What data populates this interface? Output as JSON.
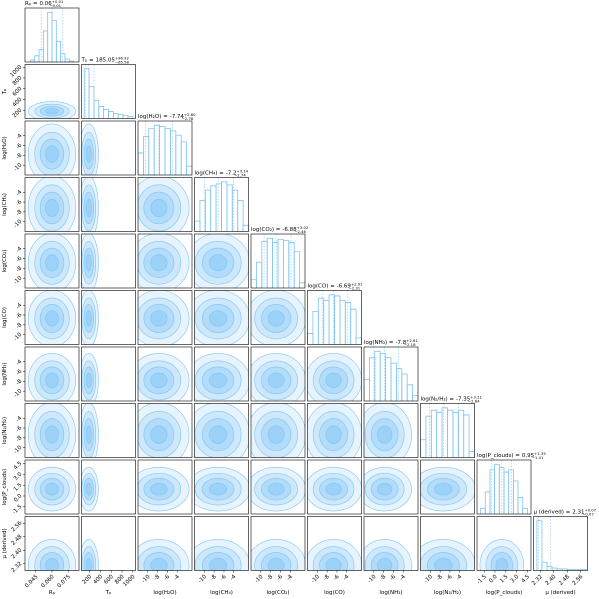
{
  "chart_data": {
    "type": "corner",
    "params": [
      {
        "name": "Rₚ",
        "title_prefix": "Rₚ =",
        "median": 0.06,
        "plus": {
          "value": 0.01,
          "label": "+0.01"
        },
        "minus": {
          "value": 0.01,
          "label": "−0.01"
        },
        "lim": [
          0.035,
          0.085
        ],
        "ticks": [
          0.045,
          {
            "value": 0.06,
            "label": "0.060"
          },
          0.075
        ],
        "bins": [
          0.04,
          0.044,
          0.048,
          0.052,
          0.056,
          0.06,
          0.064,
          0.068,
          0.072,
          0.076,
          0.08
        ],
        "counts": [
          2,
          6,
          12,
          30,
          48,
          40,
          20,
          8,
          3,
          1
        ]
      },
      {
        "name": "Tₚ",
        "title_prefix": "Tₚ =",
        "median": 185.05,
        "plus": {
          "value": 96.32,
          "label": "+96.32"
        },
        "minus": {
          "value": 65.58,
          "label": "−65.58"
        },
        "lim": [
          50,
          1050
        ],
        "ticks": [
          200,
          400,
          600,
          800,
          1000
        ],
        "bins": [
          100,
          190,
          280,
          370,
          460,
          550,
          640,
          730,
          820,
          910,
          1000
        ],
        "counts": [
          50,
          32,
          18,
          12,
          9,
          7,
          5,
          4,
          3,
          2
        ]
      },
      {
        "name": "log(H₂O)",
        "title_prefix": "log(H₂O) =",
        "median": -7.74,
        "plus": {
          "value": 2.8,
          "label": "+2.80"
        },
        "minus": {
          "value": 2.78,
          "label": "−2.78"
        },
        "lim": [
          -12,
          -1
        ],
        "ticks": [
          -10,
          -8,
          -6,
          -4
        ],
        "bins": [
          -12,
          -10.9,
          -9.8,
          -8.7,
          -7.6,
          -6.5,
          -5.4,
          -4.3,
          -3.2,
          -2.1,
          -1
        ],
        "counts": [
          20,
          35,
          42,
          45,
          44,
          42,
          40,
          36,
          30,
          8
        ]
      },
      {
        "name": "log(CH₄)",
        "title_prefix": "log(CH₄) =",
        "median": -7.2,
        "plus": {
          "value": 3.14,
          "label": "+3.14"
        },
        "minus": {
          "value": 2.74,
          "label": "−2.74"
        },
        "lim": [
          -12,
          -1
        ],
        "ticks": [
          -10,
          -8,
          -6,
          -4
        ],
        "bins": [
          -12,
          -10.9,
          -9.8,
          -8.7,
          -7.6,
          -6.5,
          -5.4,
          -4.3,
          -3.2,
          -2.1,
          -1
        ],
        "counts": [
          10,
          30,
          40,
          44,
          46,
          48,
          45,
          40,
          30,
          6
        ]
      },
      {
        "name": "log(CO₂)",
        "title_prefix": "log(CO₂) =",
        "median": -6.88,
        "plus": {
          "value": 3.02,
          "label": "+3.02"
        },
        "minus": {
          "value": 2.46,
          "label": "−2.46"
        },
        "lim": [
          -12,
          -1
        ],
        "ticks": [
          -10,
          -8,
          -6,
          -4
        ],
        "bins": [
          -12,
          -10.9,
          -9.8,
          -8.7,
          -7.6,
          -6.5,
          -5.4,
          -4.3,
          -3.2,
          -2.1,
          -1
        ],
        "counts": [
          8,
          25,
          45,
          48,
          44,
          47,
          46,
          44,
          35,
          5
        ]
      },
      {
        "name": "log(CO)",
        "title_prefix": "log(CO) =",
        "median": -6.69,
        "plus": {
          "value": 2.91,
          "label": "+2.91"
        },
        "minus": {
          "value": 2.31,
          "label": "−2.31"
        },
        "lim": [
          -12,
          -1
        ],
        "ticks": [
          -10,
          -8,
          -6,
          -4
        ],
        "bins": [
          -12,
          -10.9,
          -9.8,
          -8.7,
          -7.6,
          -6.5,
          -5.4,
          -4.3,
          -3.2,
          -2.1,
          -1
        ],
        "counts": [
          10,
          30,
          42,
          40,
          45,
          44,
          40,
          38,
          32,
          6
        ]
      },
      {
        "name": "log(NH₃)",
        "title_prefix": "log(NH₃) =",
        "median": -7.8,
        "plus": {
          "value": 2.81,
          "label": "+2.81"
        },
        "minus": {
          "value": 2.18,
          "label": "−2.18"
        },
        "lim": [
          -12,
          -1
        ],
        "ticks": [
          -10,
          -8,
          -6,
          -4
        ],
        "bins": [
          -12,
          -10.9,
          -9.8,
          -8.7,
          -7.6,
          -6.5,
          -5.4,
          -4.3,
          -3.2,
          -2.1,
          -1
        ],
        "counts": [
          20,
          40,
          46,
          44,
          40,
          35,
          30,
          25,
          15,
          5
        ]
      },
      {
        "name": "log(N₂/H₂)",
        "title_prefix": "log(N₂/H₂) =",
        "median": -7.35,
        "plus": {
          "value": 3.11,
          "label": "+3.11"
        },
        "minus": {
          "value": 2.84,
          "label": "−2.84"
        },
        "lim": [
          -12,
          -1
        ],
        "ticks": [
          -10,
          -8,
          -6,
          -4
        ],
        "bins": [
          -12,
          -10.9,
          -9.8,
          -8.7,
          -7.6,
          -6.5,
          -5.4,
          -4.3,
          -3.2,
          -2.1,
          -1
        ],
        "counts": [
          15,
          35,
          40,
          38,
          42,
          40,
          38,
          40,
          36,
          5
        ]
      },
      {
        "name": "log(P_clouds)",
        "title_prefix": "log(P_clouds) =",
        "median": 0.95,
        "plus": {
          "value": 1.35,
          "label": "+1.35"
        },
        "minus": {
          "value": 1.41,
          "label": "−1.41"
        },
        "lim": [
          -2.5,
          5
        ],
        "ticks": [
          -1.5,
          {
            "value": 0,
            "label": "0.0"
          },
          1.5,
          {
            "value": 3,
            "label": "3.0"
          },
          4.5
        ],
        "bins": [
          -2,
          -1.35,
          -0.7,
          -0.05,
          0.6,
          1.25,
          1.9,
          2.55,
          3.2,
          3.85,
          4.5
        ],
        "counts": [
          5,
          20,
          40,
          45,
          42,
          38,
          40,
          30,
          15,
          5
        ]
      },
      {
        "name": "μ (derived)",
        "title_prefix": "μ (derived) =",
        "median": 2.31,
        "plus": {
          "value": 0.07,
          "label": "+0.07"
        },
        "minus": {
          "value": 0.07,
          "label": "−0.07"
        },
        "lim": [
          2.28,
          2.6
        ],
        "ticks": [
          2.32,
          {
            "value": 2.4,
            "label": "2.40"
          },
          2.48,
          2.56
        ],
        "bins": [
          2.3,
          2.33,
          2.36,
          2.39,
          2.42,
          2.45,
          2.48,
          2.51,
          2.54,
          2.57,
          2.6
        ],
        "counts": [
          60,
          10,
          5,
          3,
          2,
          2,
          1,
          1,
          1,
          1
        ]
      }
    ]
  }
}
